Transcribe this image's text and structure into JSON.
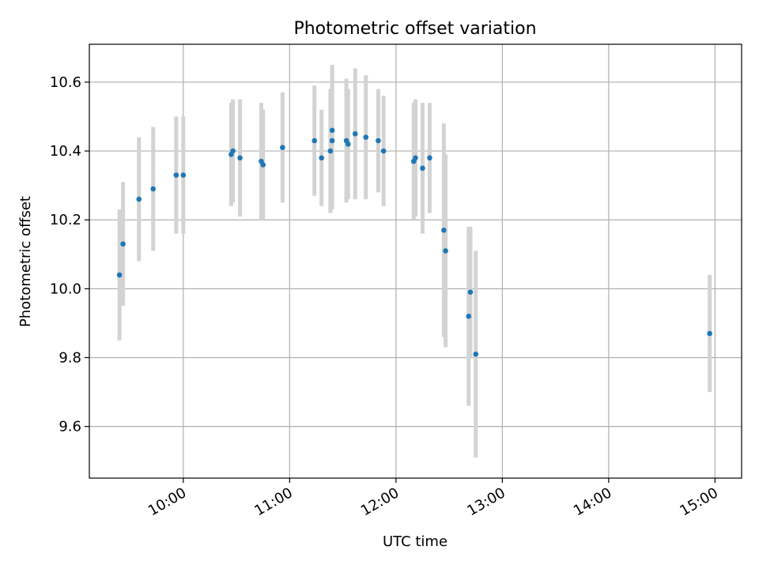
{
  "chart_data": {
    "type": "scatter",
    "title": "Photometric offset variation",
    "xlabel": "UTC time",
    "ylabel": "Photometric offset",
    "xlim": [
      "09:07",
      "15:15"
    ],
    "ylim": [
      9.45,
      10.71
    ],
    "x_ticks": [
      "10:00",
      "11:00",
      "12:00",
      "13:00",
      "14:00",
      "15:00"
    ],
    "y_ticks": [
      9.6,
      9.8,
      10.0,
      10.2,
      10.4,
      10.6
    ],
    "y_tick_labels": [
      "9.6",
      "9.8",
      "10.0",
      "10.2",
      "10.4",
      "10.6"
    ],
    "grid": true,
    "marker_color": "#1f77b4",
    "errorbar_color": "#d3d3d3",
    "series": [
      {
        "points": [
          {
            "x": "09:24",
            "y": 10.04,
            "yerr": 0.19
          },
          {
            "x": "09:26",
            "y": 10.13,
            "yerr": 0.18
          },
          {
            "x": "09:35",
            "y": 10.26,
            "yerr": 0.18
          },
          {
            "x": "09:43",
            "y": 10.29,
            "yerr": 0.18
          },
          {
            "x": "09:56",
            "y": 10.33,
            "yerr": 0.17
          },
          {
            "x": "10:00",
            "y": 10.33,
            "yerr": 0.17
          },
          {
            "x": "10:27",
            "y": 10.39,
            "yerr": 0.15
          },
          {
            "x": "10:28",
            "y": 10.4,
            "yerr": 0.15
          },
          {
            "x": "10:32",
            "y": 10.38,
            "yerr": 0.17
          },
          {
            "x": "10:44",
            "y": 10.37,
            "yerr": 0.17
          },
          {
            "x": "10:45",
            "y": 10.36,
            "yerr": 0.16
          },
          {
            "x": "10:56",
            "y": 10.41,
            "yerr": 0.16
          },
          {
            "x": "11:14",
            "y": 10.43,
            "yerr": 0.16
          },
          {
            "x": "11:18",
            "y": 10.38,
            "yerr": 0.14
          },
          {
            "x": "11:23",
            "y": 10.4,
            "yerr": 0.18
          },
          {
            "x": "11:24",
            "y": 10.46,
            "yerr": 0.19
          },
          {
            "x": "11:24",
            "y": 10.43,
            "yerr": 0.2
          },
          {
            "x": "11:32",
            "y": 10.43,
            "yerr": 0.18
          },
          {
            "x": "11:33",
            "y": 10.42,
            "yerr": 0.16
          },
          {
            "x": "11:37",
            "y": 10.45,
            "yerr": 0.19
          },
          {
            "x": "11:43",
            "y": 10.44,
            "yerr": 0.18
          },
          {
            "x": "11:50",
            "y": 10.43,
            "yerr": 0.15
          },
          {
            "x": "11:53",
            "y": 10.4,
            "yerr": 0.16
          },
          {
            "x": "12:10",
            "y": 10.37,
            "yerr": 0.17
          },
          {
            "x": "12:11",
            "y": 10.38,
            "yerr": 0.17
          },
          {
            "x": "12:15",
            "y": 10.35,
            "yerr": 0.19
          },
          {
            "x": "12:19",
            "y": 10.38,
            "yerr": 0.16
          },
          {
            "x": "12:27",
            "y": 10.17,
            "yerr": 0.31
          },
          {
            "x": "12:28",
            "y": 10.11,
            "yerr": 0.28
          },
          {
            "x": "12:41",
            "y": 9.92,
            "yerr": 0.26
          },
          {
            "x": "12:42",
            "y": 9.99,
            "yerr": 0.19
          },
          {
            "x": "12:45",
            "y": 9.81,
            "yerr": 0.3
          },
          {
            "x": "14:57",
            "y": 9.87,
            "yerr": 0.17
          }
        ]
      }
    ]
  }
}
